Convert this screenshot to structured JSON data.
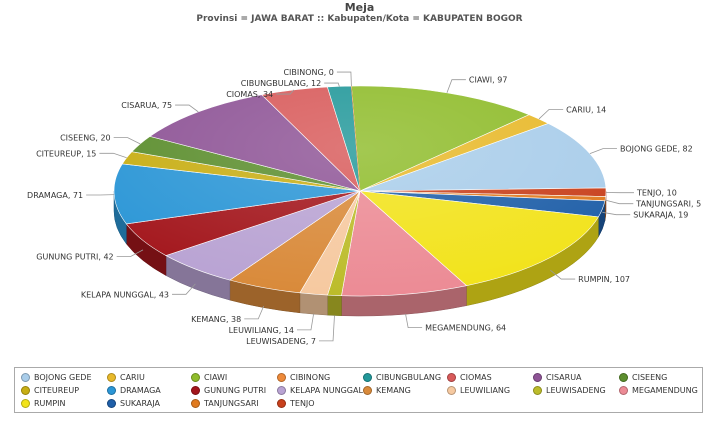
{
  "chart_data": {
    "type": "pie",
    "title": "Meja",
    "subtitle": "Provinsi = JAWA BARAT :: Kabupaten/Kota = KABUPATEN BOGOR",
    "legend_position": "bottom",
    "slices": [
      {
        "label": "CIAWI",
        "value": 97,
        "color": "#8fbc2b"
      },
      {
        "label": "CARIU",
        "value": 14,
        "color": "#e8b92a"
      },
      {
        "label": "BOJONG GEDE",
        "value": 82,
        "color": "#a9cdea"
      },
      {
        "label": "TENJO",
        "value": 10,
        "color": "#c8401c"
      },
      {
        "label": "TANJUNGSARI",
        "value": 5,
        "color": "#e07a1f"
      },
      {
        "label": "SUKARAJA",
        "value": 19,
        "color": "#1f5fa8"
      },
      {
        "label": "RUMPIN",
        "value": 107,
        "color": "#f2e31b"
      },
      {
        "label": "MEGAMENDUNG",
        "value": 64,
        "color": "#ec8b95"
      },
      {
        "label": "LEUWISADENG",
        "value": 7,
        "color": "#bcbc2a"
      },
      {
        "label": "LEUWILIANG",
        "value": 14,
        "color": "#f6c9a0"
      },
      {
        "label": "KEMANG",
        "value": 38,
        "color": "#d98a3a"
      },
      {
        "label": "KELAPA NUNGGAL",
        "value": 43,
        "color": "#b9a3d3"
      },
      {
        "label": "GUNUNG PUTRI",
        "value": 42,
        "color": "#a3161c"
      },
      {
        "label": "DRAMAGA",
        "value": 71,
        "color": "#2b96d6"
      },
      {
        "label": "CITEUREUP",
        "value": 15,
        "color": "#c8ae14"
      },
      {
        "label": "CISEENG",
        "value": 20,
        "color": "#5c8e2e"
      },
      {
        "label": "CISARUA",
        "value": 75,
        "color": "#8e5496"
      },
      {
        "label": "CIOMAS",
        "value": 34,
        "color": "#d85a5a"
      },
      {
        "label": "CIBUNGBULANG",
        "value": 12,
        "color": "#22989a"
      },
      {
        "label": "CIBINONG",
        "value": 0,
        "color": "#ee8a3a"
      }
    ],
    "legend_rows": [
      [
        "BOJONG GEDE",
        "CARIU",
        "CIAWI",
        "CIBINONG",
        "CIBUNGBULANG",
        "CIOMAS",
        "CISARUA",
        "CISEENG"
      ],
      [
        "CITEUREUP",
        "DRAMAGA",
        "GUNUNG PUTRI",
        "KELAPA NUNGGAL",
        "KEMANG",
        "LEUWILIANG",
        "LEUWISADENG",
        "MEGAMENDUNG"
      ],
      [
        "RUMPIN",
        "SUKARAJA",
        "TANJUNGSARI",
        "TENJO"
      ]
    ]
  }
}
